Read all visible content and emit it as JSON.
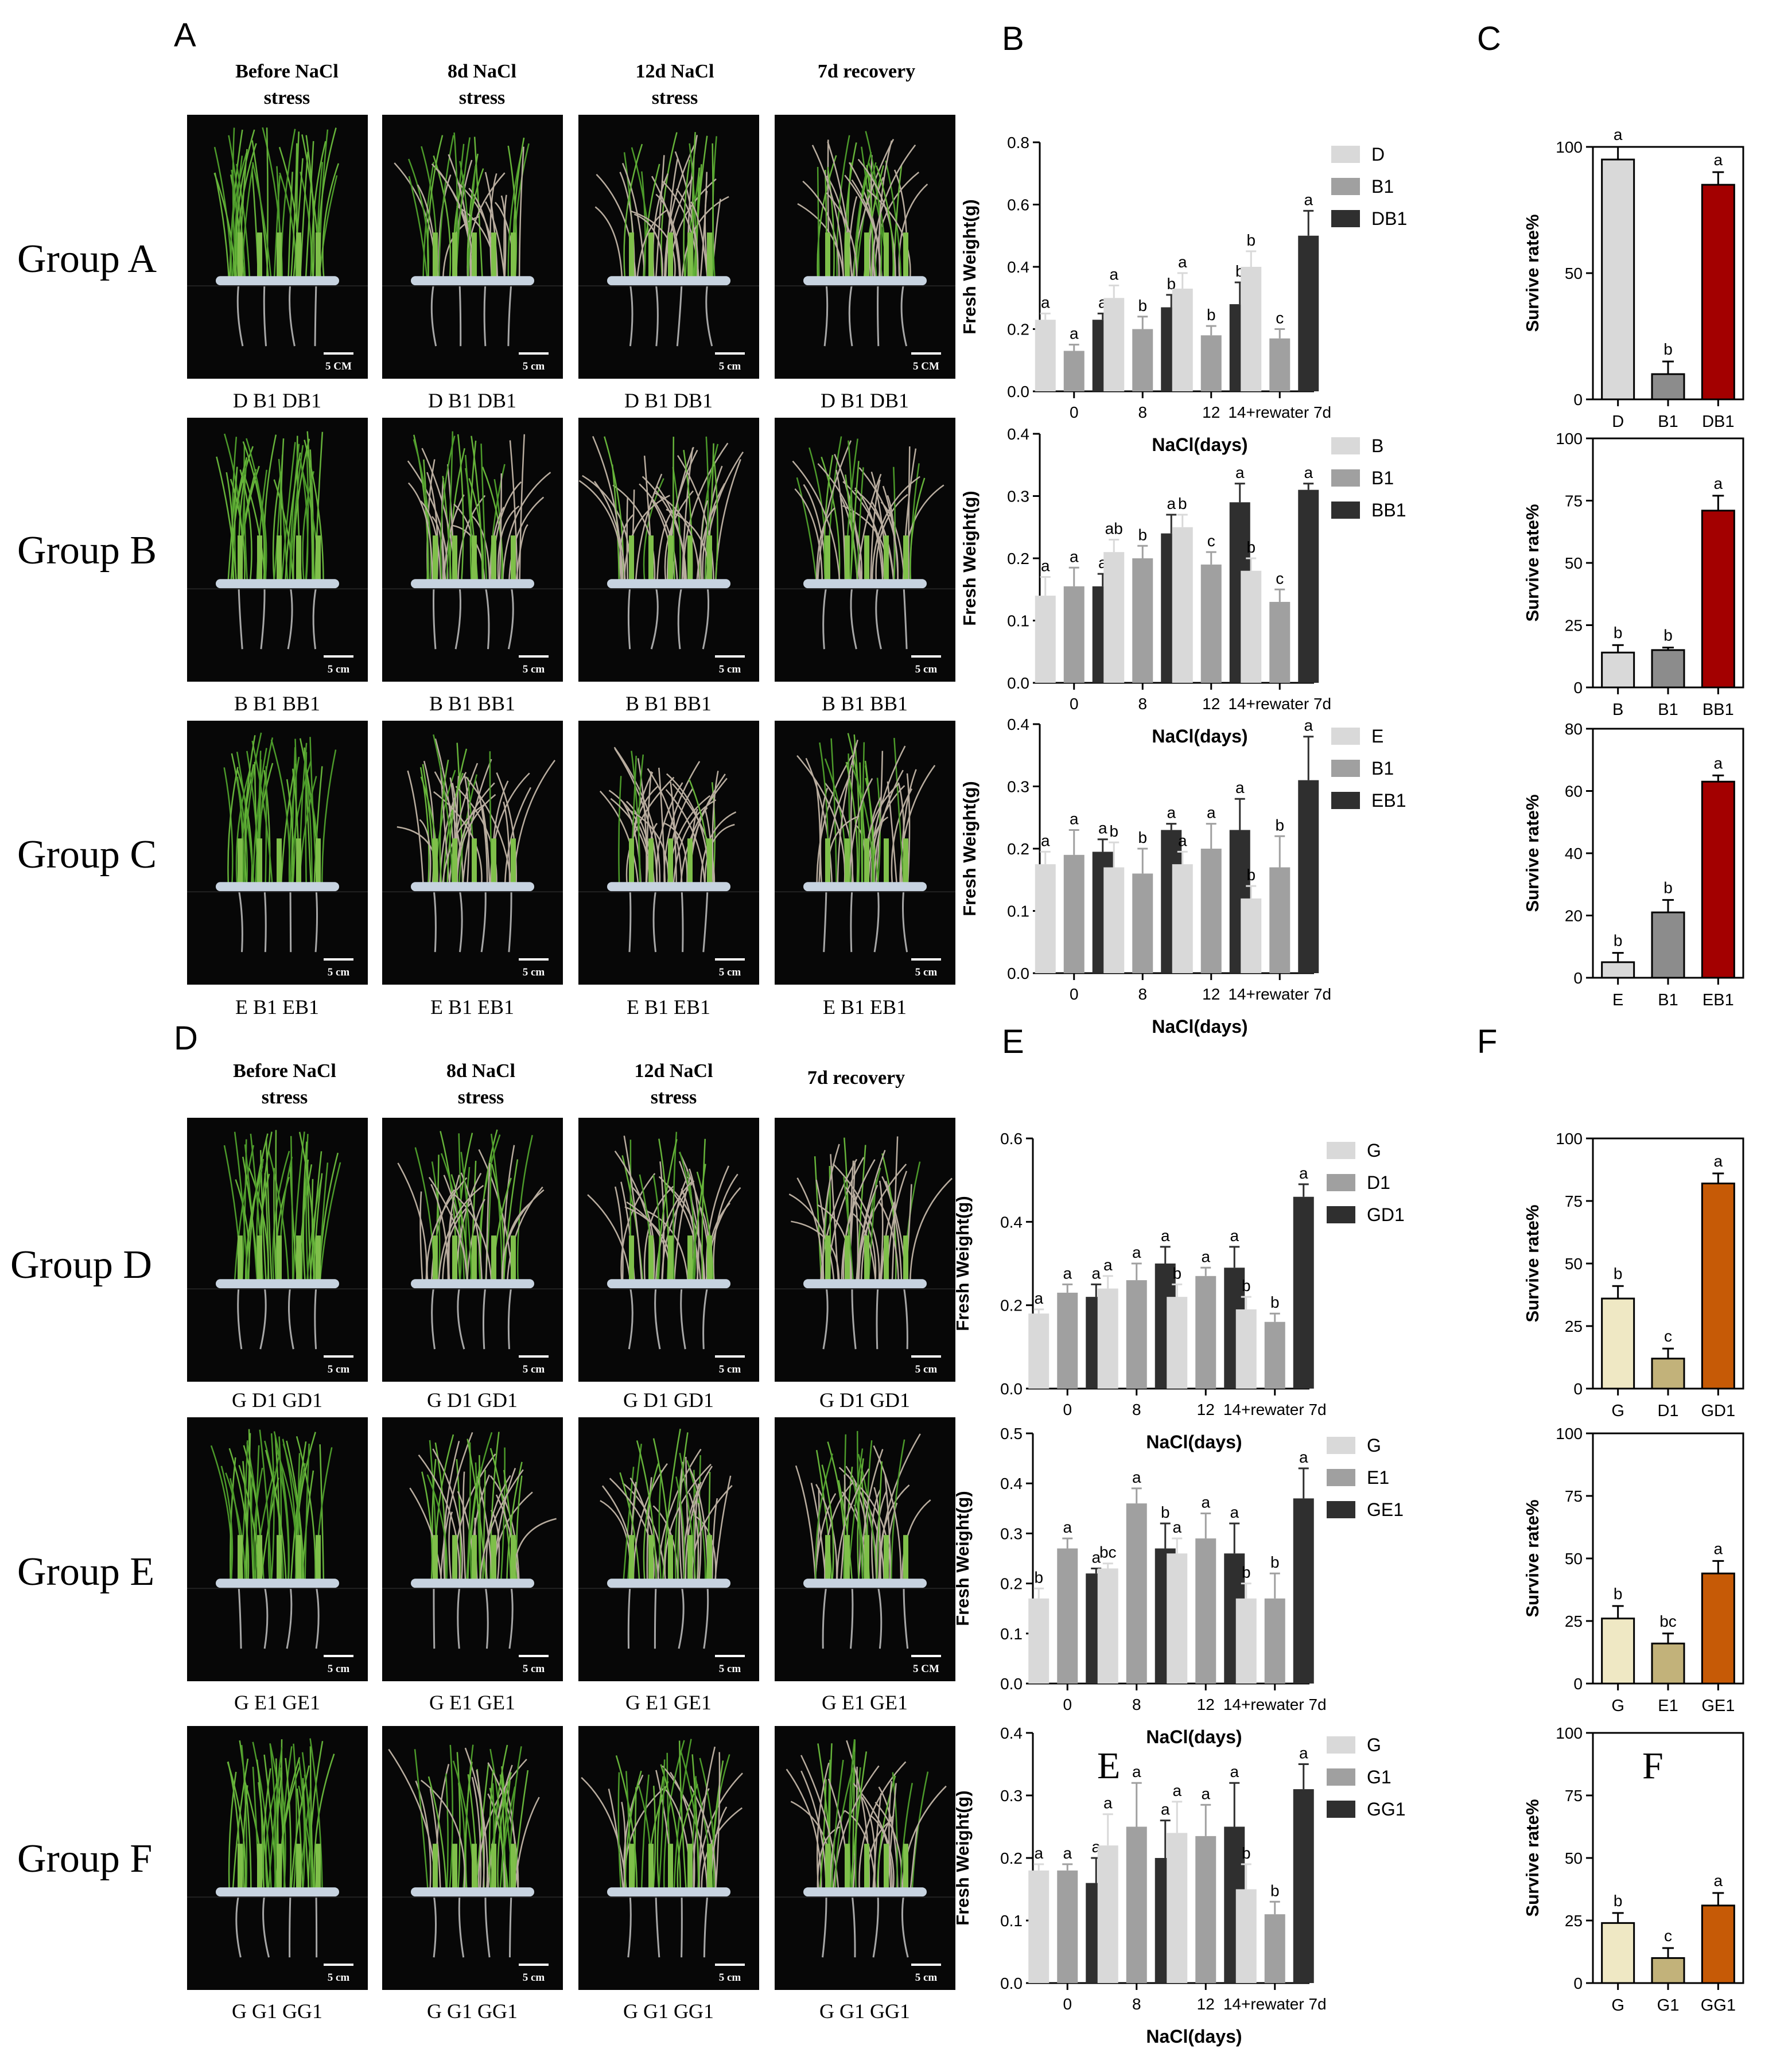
{
  "colors": {
    "light": "#d9d9d9",
    "mid": "#a0a0a0",
    "dark": "#2f2f2f",
    "red": "#a30000",
    "cream": "#efe8c4",
    "khaki": "#c2b27a",
    "orange": "#c65a06",
    "scalebar": "#ffffff"
  },
  "panels": {
    "A": {
      "letter": "A"
    },
    "B": {
      "letter": "B"
    },
    "C": {
      "letter": "C"
    },
    "D": {
      "letter": "D"
    },
    "E": {
      "letter": "E"
    },
    "F": {
      "letter": "F"
    }
  },
  "overlay_letters": {
    "E": "E",
    "F": "F"
  },
  "stress_headers": [
    "Before NaCl\nstress",
    "8d NaCl\nstress",
    "12d NaCl\nstress",
    "7d recovery"
  ],
  "photo_groups": [
    {
      "label": "Group A",
      "caption": "D  B1  DB1",
      "scales": [
        "5 CM",
        "5 cm",
        "5 cm",
        "5 CM"
      ],
      "wilt": [
        0,
        0.5,
        0.6,
        0.55
      ]
    },
    {
      "label": "Group B",
      "caption": "B  B1  BB1",
      "scales": [
        "5 cm",
        "5 cm",
        "5 cm",
        "5 cm"
      ],
      "wilt": [
        0,
        0.55,
        0.75,
        0.7
      ]
    },
    {
      "label": "Group C",
      "caption": "E  B1  EB1",
      "scales": [
        "5 cm",
        "5 cm",
        "5 cm",
        "5 cm"
      ],
      "wilt": [
        0,
        0.6,
        0.75,
        0.6
      ]
    },
    {
      "label": "Group D",
      "caption": "G  D1  GD1",
      "scales": [
        "5 cm",
        "5 cm",
        "5 cm",
        "5 cm"
      ],
      "wilt": [
        0,
        0.45,
        0.6,
        0.75
      ]
    },
    {
      "label": "Group E",
      "caption": "G  E1  GE1",
      "scales": [
        "5 cm",
        "5 cm",
        "5 cm",
        "5 CM"
      ],
      "wilt": [
        0,
        0.45,
        0.6,
        0.65
      ]
    },
    {
      "label": "Group F",
      "caption": "G  G1  GG1",
      "scales": [
        "5 cm",
        "5 cm",
        "5 cm",
        "5 cm"
      ],
      "wilt": [
        0,
        0.4,
        0.5,
        0.55
      ]
    }
  ],
  "chart_data": [
    {
      "type": "bar",
      "panel": "B",
      "xlabel": "NaCl(days)",
      "ylabel": "Fresh Weight(g)",
      "ylim": [
        0,
        0.8
      ],
      "yticks": [
        "0.0",
        "0.2",
        "0.4",
        "0.6",
        "0.8"
      ],
      "categories": [
        "0",
        "8",
        "12",
        "14+rewater 7d"
      ],
      "series": [
        {
          "name": "D",
          "values": [
            0.23,
            0.3,
            0.33,
            0.4
          ],
          "err": [
            0.02,
            0.04,
            0.05,
            0.05
          ],
          "letters": [
            "a",
            "a",
            "a",
            "b"
          ]
        },
        {
          "name": "B1",
          "values": [
            0.13,
            0.2,
            0.18,
            0.17
          ],
          "err": [
            0.02,
            0.04,
            0.03,
            0.03
          ],
          "letters": [
            "a",
            "b",
            "b",
            "c"
          ]
        },
        {
          "name": "DB1",
          "values": [
            0.23,
            0.27,
            0.28,
            0.5
          ],
          "err": [
            0.02,
            0.04,
            0.07,
            0.08
          ],
          "letters": [
            "a",
            "b",
            "b",
            "a"
          ]
        }
      ]
    },
    {
      "type": "bar",
      "panel": "B",
      "xlabel": "NaCl(days)",
      "ylabel": "Fresh Weight(g)",
      "ylim": [
        0,
        0.4
      ],
      "yticks": [
        "0.0",
        "0.1",
        "0.2",
        "0.3",
        "0.4"
      ],
      "categories": [
        "0",
        "8",
        "12",
        "14+rewater 7d"
      ],
      "series": [
        {
          "name": "B",
          "values": [
            0.14,
            0.21,
            0.25,
            0.18
          ],
          "err": [
            0.03,
            0.02,
            0.02,
            0.02
          ],
          "letters": [
            "a",
            "ab",
            "b",
            "b"
          ]
        },
        {
          "name": "B1",
          "values": [
            0.155,
            0.2,
            0.19,
            0.13
          ],
          "err": [
            0.03,
            0.02,
            0.02,
            0.02
          ],
          "letters": [
            "a",
            "b",
            "c",
            "c"
          ]
        },
        {
          "name": "BB1",
          "values": [
            0.155,
            0.24,
            0.29,
            0.31
          ],
          "err": [
            0.02,
            0.03,
            0.03,
            0.01
          ],
          "letters": [
            "a",
            "a",
            "a",
            "a"
          ]
        }
      ]
    },
    {
      "type": "bar",
      "panel": "B",
      "xlabel": "NaCl(days)",
      "ylabel": "Fresh Weight(g)",
      "ylim": [
        0,
        0.4
      ],
      "yticks": [
        "0.0",
        "0.1",
        "0.2",
        "0.3",
        "0.4"
      ],
      "categories": [
        "0",
        "8",
        "12",
        "14+rewater 7d"
      ],
      "series": [
        {
          "name": "E",
          "values": [
            0.175,
            0.17,
            0.175,
            0.12
          ],
          "err": [
            0.02,
            0.04,
            0.02,
            0.02
          ],
          "letters": [
            "a",
            "b",
            "a",
            "b"
          ]
        },
        {
          "name": "B1",
          "values": [
            0.19,
            0.16,
            0.2,
            0.17
          ],
          "err": [
            0.04,
            0.04,
            0.04,
            0.05
          ],
          "letters": [
            "a",
            "b",
            "a",
            "b"
          ]
        },
        {
          "name": "EB1",
          "values": [
            0.195,
            0.23,
            0.23,
            0.31
          ],
          "err": [
            0.02,
            0.01,
            0.05,
            0.07
          ],
          "letters": [
            "a",
            "a",
            "a",
            "a"
          ]
        }
      ]
    },
    {
      "type": "bar",
      "panel": "C",
      "ylabel": "Survive rate%",
      "ylim": [
        0,
        100
      ],
      "yticks": [
        "0",
        "50",
        "100"
      ],
      "categories": [
        "D",
        "B1",
        "DB1"
      ],
      "values": [
        95,
        10,
        85
      ],
      "err": [
        5,
        5,
        5
      ],
      "letters": [
        "a",
        "b",
        "a"
      ],
      "colors": [
        "#d9d9d9",
        "#8c8c8c",
        "#a30000"
      ]
    },
    {
      "type": "bar",
      "panel": "C",
      "ylabel": "Survive rate%",
      "ylim": [
        0,
        100
      ],
      "yticks": [
        "0",
        "25",
        "50",
        "75",
        "100"
      ],
      "categories": [
        "B",
        "B1",
        "BB1"
      ],
      "values": [
        14,
        15,
        71
      ],
      "err": [
        3,
        1,
        6
      ],
      "letters": [
        "b",
        "b",
        "a"
      ],
      "colors": [
        "#d9d9d9",
        "#8c8c8c",
        "#a30000"
      ]
    },
    {
      "type": "bar",
      "panel": "C",
      "ylabel": "Survive rate%",
      "ylim": [
        0,
        80
      ],
      "yticks": [
        "0",
        "20",
        "40",
        "60",
        "80"
      ],
      "categories": [
        "E",
        "B1",
        "EB1"
      ],
      "values": [
        5,
        21,
        63
      ],
      "err": [
        3,
        4,
        2
      ],
      "letters": [
        "b",
        "b",
        "a"
      ],
      "colors": [
        "#d9d9d9",
        "#8c8c8c",
        "#a30000"
      ]
    },
    {
      "type": "bar",
      "panel": "E",
      "xlabel": "NaCl(days)",
      "ylabel": "Fresh Weight(g)",
      "ylim": [
        0,
        0.6
      ],
      "yticks": [
        "0.0",
        "0.2",
        "0.4",
        "0.6"
      ],
      "categories": [
        "0",
        "8",
        "12",
        "14+rewater 7d"
      ],
      "series": [
        {
          "name": "G",
          "values": [
            0.18,
            0.24,
            0.22,
            0.19
          ],
          "err": [
            0.01,
            0.03,
            0.03,
            0.03
          ],
          "letters": [
            "a",
            "a",
            "b",
            "b"
          ]
        },
        {
          "name": "D1",
          "values": [
            0.23,
            0.26,
            0.27,
            0.16
          ],
          "err": [
            0.02,
            0.04,
            0.02,
            0.02
          ],
          "letters": [
            "a",
            "a",
            "a",
            "b"
          ]
        },
        {
          "name": "GD1",
          "values": [
            0.22,
            0.3,
            0.29,
            0.46
          ],
          "err": [
            0.03,
            0.04,
            0.05,
            0.03
          ],
          "letters": [
            "a",
            "a",
            "a",
            "a"
          ]
        }
      ]
    },
    {
      "type": "bar",
      "panel": "E",
      "xlabel": "NaCl(days)",
      "ylabel": "Fresh Weight(g)",
      "ylim": [
        0,
        0.5
      ],
      "yticks": [
        "0.0",
        "0.1",
        "0.2",
        "0.3",
        "0.4",
        "0.5"
      ],
      "categories": [
        "0",
        "8",
        "12",
        "14+rewater 7d"
      ],
      "series": [
        {
          "name": "G",
          "values": [
            0.17,
            0.23,
            0.26,
            0.17
          ],
          "err": [
            0.02,
            0.01,
            0.03,
            0.03
          ],
          "letters": [
            "b",
            "bc",
            "a",
            "b"
          ]
        },
        {
          "name": "E1",
          "values": [
            0.27,
            0.36,
            0.29,
            0.17
          ],
          "err": [
            0.02,
            0.03,
            0.05,
            0.05
          ],
          "letters": [
            "a",
            "a",
            "a",
            "b"
          ]
        },
        {
          "name": "GE1",
          "values": [
            0.22,
            0.27,
            0.26,
            0.37
          ],
          "err": [
            0.01,
            0.05,
            0.06,
            0.06
          ],
          "letters": [
            "a",
            "b",
            "a",
            "a"
          ]
        }
      ]
    },
    {
      "type": "bar",
      "panel": "E",
      "xlabel": "NaCl(days)",
      "ylabel": "Fresh Weight(g)",
      "ylim": [
        0,
        0.4
      ],
      "yticks": [
        "0.0",
        "0.1",
        "0.2",
        "0.3",
        "0.4"
      ],
      "categories": [
        "0",
        "8",
        "12",
        "14+rewater 7d"
      ],
      "series": [
        {
          "name": "G",
          "values": [
            0.18,
            0.22,
            0.24,
            0.15
          ],
          "err": [
            0.01,
            0.05,
            0.05,
            0.04
          ],
          "letters": [
            "a",
            "a",
            "a",
            "b"
          ]
        },
        {
          "name": "G1",
          "values": [
            0.18,
            0.25,
            0.235,
            0.11
          ],
          "err": [
            0.01,
            0.07,
            0.05,
            0.02
          ],
          "letters": [
            "a",
            "a",
            "a",
            "b"
          ]
        },
        {
          "name": "GG1",
          "values": [
            0.16,
            0.2,
            0.25,
            0.31
          ],
          "err": [
            0.04,
            0.06,
            0.07,
            0.04
          ],
          "letters": [
            "a",
            "a",
            "a",
            "a"
          ]
        }
      ]
    },
    {
      "type": "bar",
      "panel": "F",
      "ylabel": "Survive rate%",
      "ylim": [
        0,
        100
      ],
      "yticks": [
        "0",
        "25",
        "50",
        "75",
        "100"
      ],
      "categories": [
        "G",
        "D1",
        "GD1"
      ],
      "values": [
        36,
        12,
        82
      ],
      "err": [
        5,
        4,
        4
      ],
      "letters": [
        "b",
        "c",
        "a"
      ],
      "colors": [
        "#efe8c4",
        "#c2b27a",
        "#c65a06"
      ]
    },
    {
      "type": "bar",
      "panel": "F",
      "ylabel": "Survive rate%",
      "ylim": [
        0,
        100
      ],
      "yticks": [
        "0",
        "25",
        "50",
        "75",
        "100"
      ],
      "categories": [
        "G",
        "E1",
        "GE1"
      ],
      "values": [
        26,
        16,
        44
      ],
      "err": [
        5,
        4,
        5
      ],
      "letters": [
        "b",
        "bc",
        "a"
      ],
      "colors": [
        "#efe8c4",
        "#c2b27a",
        "#c65a06"
      ]
    },
    {
      "type": "bar",
      "panel": "F",
      "ylabel": "Survive rate%",
      "ylim": [
        0,
        100
      ],
      "yticks": [
        "0",
        "25",
        "50",
        "75",
        "100"
      ],
      "categories": [
        "G",
        "G1",
        "GG1"
      ],
      "values": [
        24,
        10,
        31
      ],
      "err": [
        4,
        4,
        5
      ],
      "letters": [
        "b",
        "c",
        "a"
      ],
      "colors": [
        "#efe8c4",
        "#c2b27a",
        "#c65a06"
      ]
    }
  ]
}
